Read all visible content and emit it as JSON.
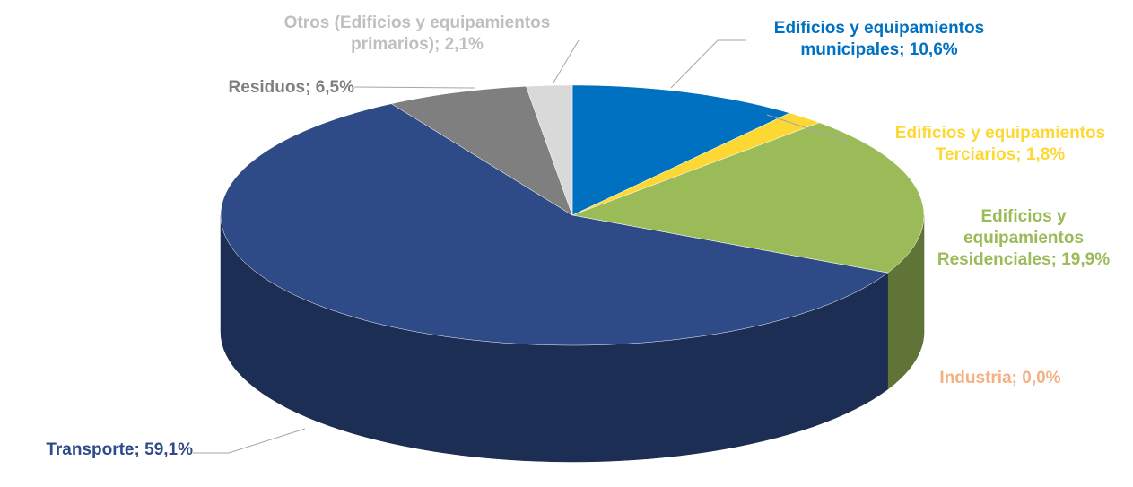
{
  "chart_data": {
    "type": "pie",
    "categories": [
      "Edificios y equipamientos municipales",
      "Edificios y equipamientos Terciarios",
      "Edificios y equipamientos Residenciales",
      "Industria",
      "Transporte",
      "Residuos",
      "Otros (Edificios y equipamientos primarios)"
    ],
    "values": [
      10.6,
      1.8,
      19.9,
      0.0,
      59.1,
      6.5,
      2.1
    ],
    "value_labels": [
      "10,6%",
      "1,8%",
      "19,9%",
      "0,0%",
      "59,1%",
      "6,5%",
      "2,1%"
    ],
    "label_separator": "; ",
    "colors": [
      "#0070c0",
      "#fdd835",
      "#9bbb59",
      "#f4b183",
      "#2e4a87",
      "#7f7f7f",
      "#d9d9d9"
    ],
    "label_colors": [
      "#0070c0",
      "#fdd835",
      "#9bbb59",
      "#f4b183",
      "#2e4a87",
      "#7f7f7f",
      "#bfbfbf"
    ]
  }
}
